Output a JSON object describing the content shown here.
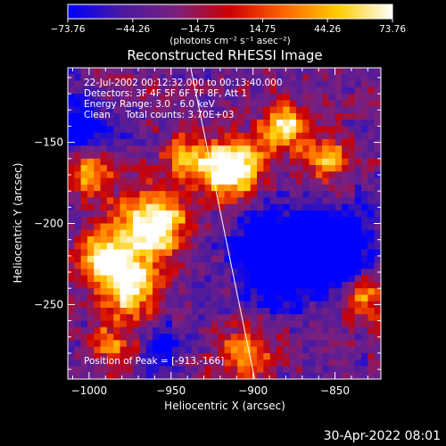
{
  "colorbar": {
    "ticks": [
      "-73.76",
      "-44.26",
      "-14.75",
      "14.75",
      "44.26",
      "73.76"
    ],
    "unit_label": "(photons cm⁻² s⁻¹ asec⁻²)",
    "vmin": -73.76,
    "vmax": 73.76
  },
  "chart_data": {
    "type": "heatmap",
    "title": "Reconstructed RHESSI Image",
    "xlabel": "Heliocentric X (arcsec)",
    "ylabel": "Heliocentric Y (arcsec)",
    "xlim": [
      -1013,
      -822
    ],
    "ylim": [
      -296,
      -104
    ],
    "xticks": [
      -1000,
      -950,
      -900,
      -850
    ],
    "yticks": [
      -150,
      -200,
      -250
    ],
    "xtick_labels": [
      "−1000",
      "−950",
      "−900",
      "−850"
    ],
    "ytick_labels": [
      "−150",
      "−200",
      "−250"
    ],
    "annotations": [
      "22-Jul-2002 00:12:32.000 to 00:13:40.000",
      "Detectors: 3F 4F 5F 6F 7F 8F, Att 1",
      "Energy Range: 3.0 - 6.0 keV",
      "Clean     Total counts: 3.70E+03"
    ],
    "peak_label": "Position of Peak = [-913,-166]",
    "peak": [
      -913,
      -166
    ],
    "limb_line": [
      [
        -938,
        -104
      ],
      [
        -899,
        -296
      ]
    ],
    "colormap": [
      "#0000ff",
      "#4a1aa0",
      "#7a2080",
      "#cc0000",
      "#ff6600",
      "#ffcc00",
      "#ffffff"
    ],
    "bright_sources": [
      {
        "x": -913,
        "y": -166,
        "sigma": 12,
        "amp": 1.0
      },
      {
        "x": -960,
        "y": -200,
        "sigma": 14,
        "amp": 0.85
      },
      {
        "x": -990,
        "y": -220,
        "sigma": 12,
        "amp": 0.7
      },
      {
        "x": -975,
        "y": -240,
        "sigma": 12,
        "amp": 0.75
      },
      {
        "x": -880,
        "y": -140,
        "sigma": 10,
        "amp": 0.65
      },
      {
        "x": -855,
        "y": -160,
        "sigma": 10,
        "amp": 0.5
      },
      {
        "x": -940,
        "y": -160,
        "sigma": 10,
        "amp": 0.45
      },
      {
        "x": -1000,
        "y": -170,
        "sigma": 10,
        "amp": 0.5
      },
      {
        "x": -830,
        "y": -245,
        "sigma": 10,
        "amp": 0.45
      },
      {
        "x": -905,
        "y": -280,
        "sigma": 12,
        "amp": 0.45
      },
      {
        "x": -985,
        "y": -275,
        "sigma": 10,
        "amp": 0.4
      }
    ],
    "dark_regions": [
      {
        "x": -885,
        "y": -220,
        "sigma": 18,
        "amp": 0.75
      },
      {
        "x": -850,
        "y": -215,
        "sigma": 16,
        "amp": 0.6
      },
      {
        "x": -1005,
        "y": -140,
        "sigma": 12,
        "amp": 0.45
      },
      {
        "x": -955,
        "y": -275,
        "sigma": 10,
        "amp": 0.35
      }
    ]
  },
  "timestamp": "30-Apr-2022 08:01"
}
